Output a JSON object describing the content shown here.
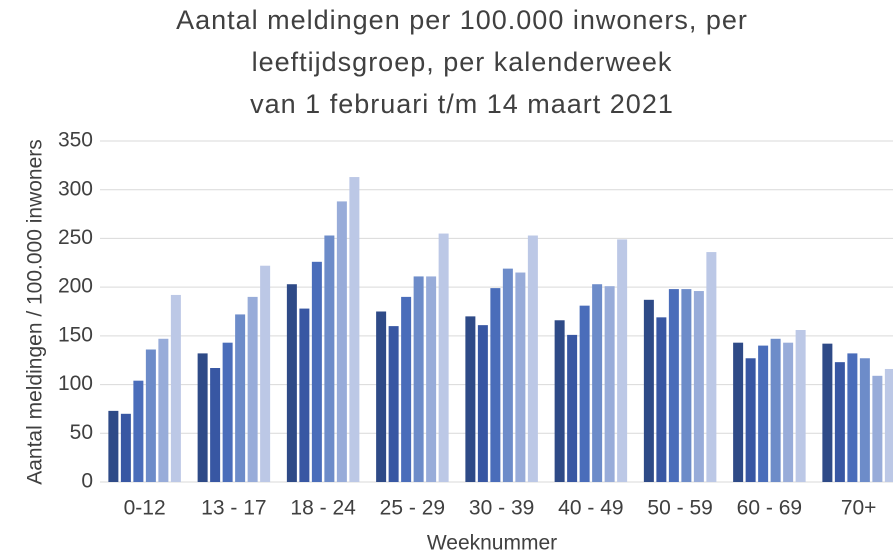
{
  "chart_data": {
    "type": "bar",
    "title": [
      "Aantal meldingen per 100.000 inwoners, per",
      "leeftijdsgroep, per kalenderweek",
      "van 1 februari t/m 14 maart 2021"
    ],
    "y_label": "Aantal meldingen / 100.000 inwoners",
    "x_label": "Weeknummer",
    "categories": [
      "0-12",
      "13 - 17",
      "18 - 24",
      "25 - 29",
      "30 - 39",
      "40 - 49",
      "50 - 59",
      "60 - 69",
      "70+"
    ],
    "series": [
      {
        "color": "#2e4a87",
        "values": [
          73,
          132,
          203,
          175,
          170,
          166,
          187,
          143,
          142
        ]
      },
      {
        "color": "#3857a3",
        "values": [
          70,
          117,
          178,
          160,
          161,
          151,
          169,
          127,
          123
        ]
      },
      {
        "color": "#4a6dba",
        "values": [
          104,
          143,
          226,
          190,
          199,
          181,
          198,
          140,
          132
        ]
      },
      {
        "color": "#6d8cc9",
        "values": [
          136,
          172,
          253,
          211,
          219,
          203,
          198,
          147,
          127
        ]
      },
      {
        "color": "#98acd9",
        "values": [
          147,
          190,
          288,
          211,
          215,
          201,
          196,
          143,
          109
        ]
      },
      {
        "color": "#bcc8e6",
        "values": [
          192,
          222,
          313,
          255,
          253,
          249,
          236,
          156,
          116
        ]
      }
    ],
    "ylim": [
      0,
      350
    ],
    "yticks": [
      0,
      50,
      100,
      150,
      200,
      250,
      300,
      350
    ],
    "grid": true
  }
}
